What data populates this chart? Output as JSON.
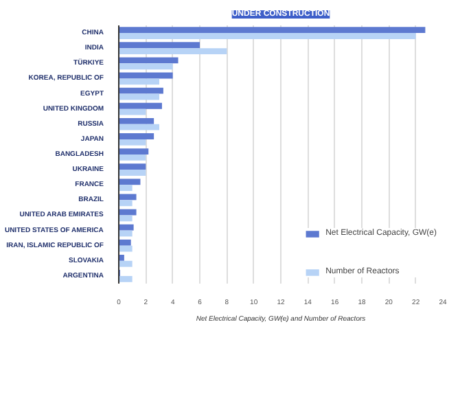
{
  "chart_data": {
    "type": "bar",
    "orientation": "horizontal",
    "title": "UNDER CONSTRUCTION",
    "xlabel": "Net Electrical Capacity, GW(e) and Number of Reactors",
    "categories": [
      "CHINA",
      "INDIA",
      "TÜRKIYE",
      "KOREA, REPUBLIC OF",
      "EGYPT",
      "UNITED KINGDOM",
      "RUSSIA",
      "JAPAN",
      "BANGLADESH",
      "UKRAINE",
      "FRANCE",
      "BRAZIL",
      "UNITED ARAB EMIRATES",
      "UNITED STATES OF AMERICA",
      "IRAN, ISLAMIC REPUBLIC OF",
      "SLOVAKIA",
      "ARGENTINA"
    ],
    "series": [
      {
        "name": "Net Electrical Capacity, GW(e)",
        "color": "#5d79d0",
        "values": [
          22.7,
          6.0,
          4.4,
          4.0,
          3.3,
          3.2,
          2.6,
          2.6,
          2.2,
          2.0,
          1.6,
          1.3,
          1.3,
          1.1,
          0.9,
          0.4,
          0.1
        ]
      },
      {
        "name": "Number of Reactors",
        "color": "#b7d3f6",
        "values": [
          22,
          8,
          4,
          3,
          3,
          2,
          3,
          2,
          2,
          2,
          1,
          1,
          1,
          1,
          1,
          1,
          1
        ]
      }
    ],
    "xlim": [
      0,
      24
    ],
    "xticks": [
      0,
      2,
      4,
      6,
      8,
      10,
      12,
      14,
      16,
      18,
      20,
      22,
      24
    ],
    "grid": "x",
    "legend": "bottom"
  }
}
